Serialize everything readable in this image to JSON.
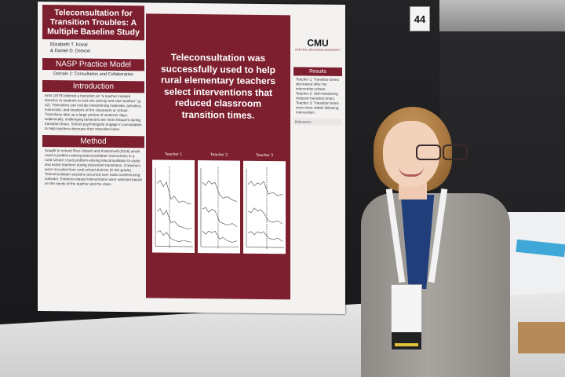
{
  "scene": {
    "booth_number": "44"
  },
  "poster": {
    "title": "Teleconsultation for Transition Troubles: A Multiple Baseline Study",
    "authors": [
      "Elizabeth T. Koval",
      "& Daniel D. Drevon"
    ],
    "model_heading": "NASP Practice Model",
    "model_domain": "Domain 2: Consultation and Collaboration",
    "introduction_heading": "Introduction",
    "introduction_text": "Arlin (1979) defined a transition as \"a teacher initiated directive to students to end one activity and start another\" (p. 42). Transitions can include transitioning materials, activities, instruction, and locations of the classroom or school. Transitions take up a large portion of students' days. Additionally, challenging behaviors are more frequent during transition times. School psychologists engage in consultation to help teachers decrease their transition times.",
    "method_heading": "Method",
    "method_text": "Sought to extend Rice-Urbach and Kratochwill (2016) which used a problem-solving teleconsultation intervention in a rural school. Used problem-solving teleconsultation to study and assist teachers during classroom transitions. 3 teachers were recruited from rural school districts (K-5th grade). Teleconsultation sessions occurred over video conferencing software. Evidence-based interventions were selected based on the needs of the teacher and the class.",
    "key_finding": "Teleconsultation was successfully used to help rural elementary teachers select interventions that reduced classroom transition times.",
    "graph_labels": [
      "Teacher 1",
      "Teacher 2",
      "Teacher 3"
    ],
    "logo": "CMU",
    "logo_sub": "CENTRAL MICHIGAN UNIVERSITY",
    "results_heading": "Results",
    "results_text": "Teacher 1: Transition times decreased after the intervention phase. Teacher 2: Self-monitoring reduced transition times. Teacher 3: Transition times were more stable following intervention.",
    "references_heading": "References"
  }
}
